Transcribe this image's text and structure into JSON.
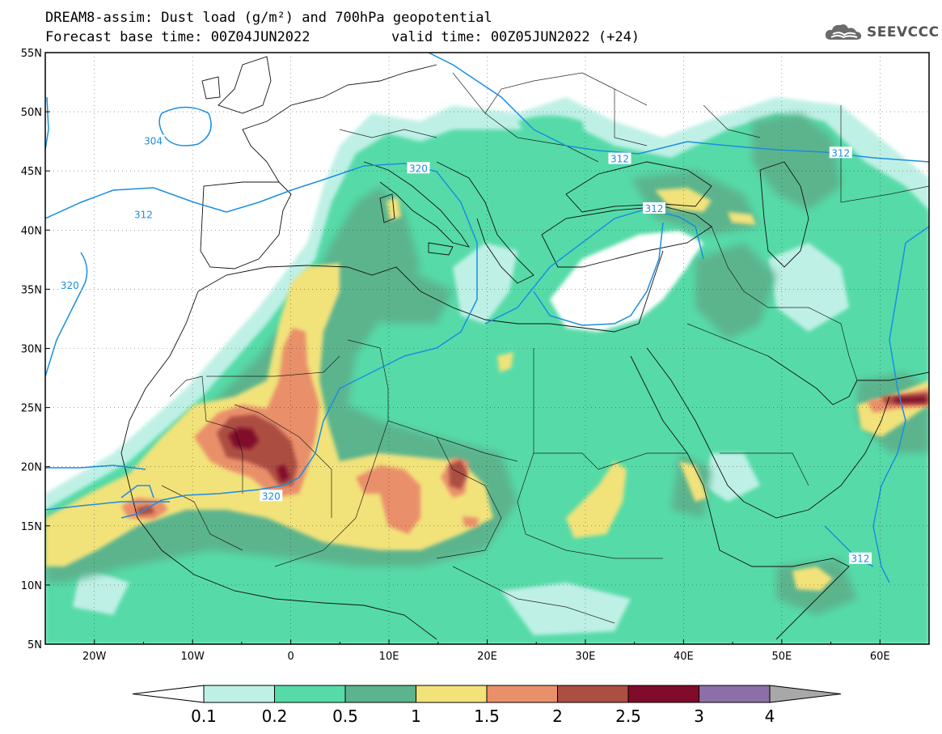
{
  "title": {
    "line1": "DREAM8-assim: Dust load (g/m²) and 700hPa geopotential",
    "line2": "Forecast base time: 00Z04JUN2022",
    "valid": "valid time: 00Z05JUN2022 (+24)"
  },
  "logo": {
    "icon": "cloud-icon",
    "text": "SEEVCCC"
  },
  "axes": {
    "lon_labels": [
      "20W",
      "10W",
      "0",
      "10E",
      "20E",
      "30E",
      "40E",
      "50E",
      "60E"
    ],
    "lon_values": [
      -20,
      -10,
      0,
      10,
      20,
      30,
      40,
      50,
      60
    ],
    "lat_labels": [
      "55N",
      "50N",
      "45N",
      "40N",
      "35N",
      "30N",
      "25N",
      "20N",
      "15N",
      "10N",
      "5N"
    ],
    "lat_values": [
      55,
      50,
      45,
      40,
      35,
      30,
      25,
      20,
      15,
      10,
      5
    ],
    "lon_range": [
      -25,
      65
    ],
    "lat_range": [
      5,
      55
    ],
    "grid": true
  },
  "colorbar": {
    "labels": [
      "0.1",
      "0.2",
      "0.5",
      "1",
      "1.5",
      "2",
      "2.5",
      "3",
      "4"
    ],
    "colors": [
      "#ffffff",
      "#bff0e6",
      "#56dba8",
      "#5bb48d",
      "#f2e27a",
      "#e9906a",
      "#ac4e42",
      "#800b2a",
      "#8c6fa6",
      "#a8a8a8"
    ]
  },
  "contour_labels": [
    {
      "text": "304",
      "lon": -14,
      "lat": 47.5
    },
    {
      "text": "312",
      "lon": -15,
      "lat": 41.3
    },
    {
      "text": "320",
      "lon": -22.5,
      "lat": 35.3
    },
    {
      "text": "320",
      "lon": 13,
      "lat": 45.2
    },
    {
      "text": "312",
      "lon": 33.5,
      "lat": 46
    },
    {
      "text": "312",
      "lon": 37,
      "lat": 41.8
    },
    {
      "text": "312",
      "lon": 56,
      "lat": 46.5
    },
    {
      "text": "320",
      "lon": -2,
      "lat": 17.5
    },
    {
      "text": "312",
      "lon": 58,
      "lat": 12.2
    }
  ],
  "map_type": "forecast-map",
  "series_legend": "Dust load (g/m²)"
}
